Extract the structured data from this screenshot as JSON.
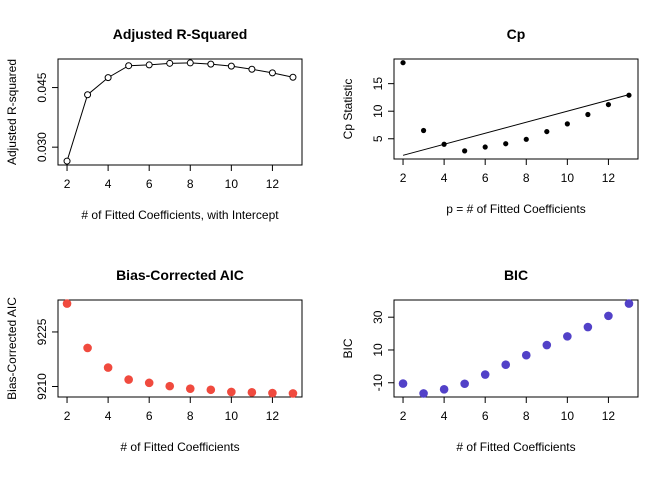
{
  "chart_data": [
    {
      "type": "line",
      "title": "Adjusted R-Squared",
      "xlabel": "# of Fitted Coefficients, with Intercept",
      "ylabel": "Adjusted R-squared",
      "x": [
        2,
        3,
        4,
        5,
        6,
        7,
        8,
        9,
        10,
        11,
        12,
        13
      ],
      "values": [
        0.0265,
        0.0432,
        0.0475,
        0.0505,
        0.0507,
        0.0511,
        0.0512,
        0.0509,
        0.0504,
        0.0496,
        0.0487,
        0.0476
      ],
      "xticks": [
        2,
        4,
        6,
        8,
        10,
        12
      ],
      "yticks": [
        0.03,
        0.045
      ],
      "ytick_labels": [
        "0.030",
        "0.045"
      ],
      "xlim": [
        2,
        13
      ],
      "ylim": [
        0.0265,
        0.0512
      ],
      "marker": "open-circle",
      "line": true,
      "color": "#000000"
    },
    {
      "type": "scatter",
      "title": "Cp",
      "xlabel": "p = # of Fitted Coefficients",
      "ylabel": "Cp Statistic",
      "x": [
        2,
        3,
        4,
        5,
        6,
        7,
        8,
        9,
        10,
        11,
        12,
        13
      ],
      "values": [
        18.8,
        6.5,
        4.0,
        2.8,
        3.5,
        4.1,
        4.9,
        6.3,
        7.7,
        9.4,
        11.2,
        12.9
      ],
      "reference_line": {
        "x": [
          2,
          13
        ],
        "y": [
          2,
          13
        ]
      },
      "xticks": [
        2,
        4,
        6,
        8,
        10,
        12
      ],
      "yticks": [
        5,
        10,
        15
      ],
      "xlim": [
        2,
        13
      ],
      "ylim": [
        2,
        18.8
      ],
      "marker": "filled-circle",
      "color": "#000000"
    },
    {
      "type": "scatter",
      "title": "Bias-Corrected AIC",
      "xlabel": "# of Fitted Coefficients",
      "ylabel": "Bias-Corrected AIC",
      "x": [
        2,
        3,
        4,
        5,
        6,
        7,
        8,
        9,
        10,
        11,
        12,
        13
      ],
      "values": [
        9232.8,
        9220.6,
        9215.2,
        9211.9,
        9211.0,
        9210.1,
        9209.4,
        9209.1,
        9208.5,
        9208.4,
        9208.2,
        9208.1
      ],
      "xticks": [
        2,
        4,
        6,
        8,
        10,
        12
      ],
      "yticks": [
        9210,
        9225
      ],
      "ytick_labels": [
        "9210",
        "9225"
      ],
      "xlim": [
        2,
        13
      ],
      "ylim": [
        9208.1,
        9232.8
      ],
      "marker": "filled-circle",
      "color": "#f04a3e"
    },
    {
      "type": "scatter",
      "title": "BIC",
      "xlabel": "# of Fitted Coefficients",
      "ylabel": "BIC",
      "x": [
        2,
        3,
        4,
        5,
        6,
        7,
        8,
        9,
        10,
        11,
        12,
        13
      ],
      "values": [
        -10.5,
        -16.5,
        -14.0,
        -10.6,
        -5.0,
        1.0,
        6.8,
        13.0,
        18.3,
        24.0,
        30.8,
        38.3
      ],
      "xticks": [
        2,
        4,
        6,
        8,
        10,
        12
      ],
      "yticks": [
        -10,
        10,
        30
      ],
      "ytick_labels": [
        "-10",
        "10",
        "30"
      ],
      "xlim": [
        2,
        13
      ],
      "ylim": [
        -16.5,
        38.3
      ],
      "marker": "filled-circle",
      "color": "#5241c8"
    }
  ]
}
